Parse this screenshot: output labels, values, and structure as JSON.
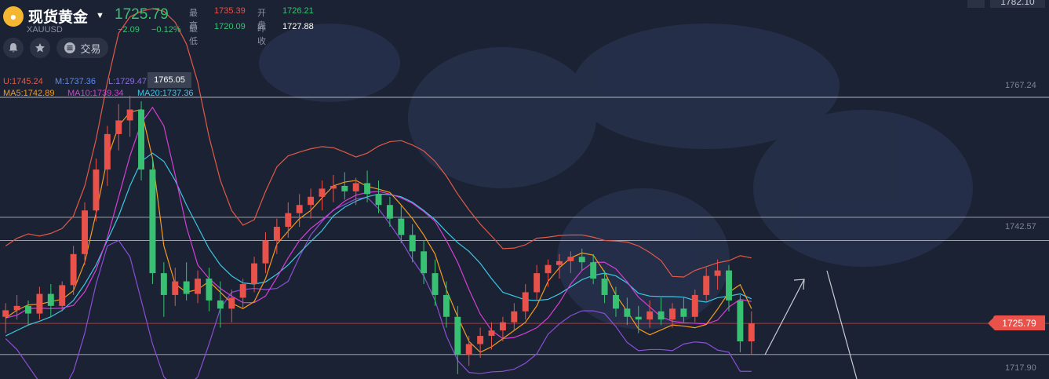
{
  "header": {
    "name": "现货黄金",
    "ticker": "XAUUSD",
    "price": "1725.79",
    "change": "−2.09",
    "change_pct": "−0.12%",
    "quote": [
      {
        "label": "最高",
        "value": "1735.39",
        "color": "#e8524a"
      },
      {
        "label": "开盘",
        "value": "1726.21",
        "color": "#38c172"
      },
      {
        "label": "最低",
        "value": "1720.09",
        "color": "#38c172"
      },
      {
        "label": "昨收",
        "value": "1727.88",
        "color": "#ffffff"
      }
    ]
  },
  "toolbar": {
    "trade_label": "交易"
  },
  "indicators": {
    "boll_upper": "U:1745.24",
    "boll_mid": "M:1737.36",
    "boll_lower": "L:1729.47",
    "ma5": "MA5:1742.89",
    "ma10": "MA10:1739.34",
    "ma20": "MA20:1737.36"
  },
  "tooltip": "1765.05",
  "axis": {
    "top_right": "1782.10",
    "current": "1725.79"
  },
  "colors": {
    "background": "#1b2233",
    "up": "#e8524a",
    "down": "#38c172",
    "boll": "#e05a48",
    "boll_lower": "#8a4fd6",
    "ma5": "#f59b1d",
    "ma10": "#d63fd6",
    "ma20": "#3cc7e6"
  },
  "chart_data": {
    "type": "candlestick",
    "series_names": [
      "U",
      "M",
      "L",
      "MA5",
      "MA10",
      "MA20"
    ],
    "y_ticks": [
      1767.24,
      1742.57,
      1717.9
    ],
    "y_tick_labels": [
      "1767.24",
      "1742.57",
      "1717.90"
    ],
    "ylim": [
      1715.0,
      1782.1
    ],
    "last_price": 1725.79,
    "horizontal_levels": [
      1767.24,
      1745.24,
      1741.0,
      1725.79,
      1720.09
    ],
    "upper_band": [
      1740.0,
      1741.4,
      1742.2,
      1741.8,
      1742.3,
      1743.2,
      1745.5,
      1751.0,
      1759.5,
      1770.0,
      1779.0,
      1782.0,
      1783.0,
      1783.5,
      1783.0,
      1781.0,
      1777.0,
      1770.0,
      1760.0,
      1752.0,
      1746.5,
      1743.8,
      1744.8,
      1750.0,
      1754.5,
      1756.5,
      1757.2,
      1757.8,
      1758.2,
      1758.0,
      1757.2,
      1756.3,
      1757.0,
      1758.3,
      1759.1,
      1759.3,
      1758.5,
      1757.4,
      1755.5,
      1752.8,
      1749.5,
      1746.6,
      1744.0,
      1741.8,
      1739.5,
      1739.6,
      1740.2,
      1741.4,
      1741.6,
      1741.9,
      1742.0,
      1742.0,
      1741.6,
      1741.0,
      1740.9,
      1740.7,
      1740.0,
      1738.8,
      1737.3,
      1734.4,
      1734.3,
      1735.5,
      1736.2,
      1736.9,
      1737.3,
      1738.2,
      1737.8
    ],
    "lower_band": [
      1723.0,
      1721.0,
      1718.0,
      1715.0,
      1713.0,
      1713.2,
      1717.0,
      1724.0,
      1733.0,
      1740.0,
      1741.0,
      1738.0,
      1730.0,
      1722.0,
      1716.0,
      1714.0,
      1714.0,
      1716.0,
      1722.0,
      1728.5,
      1731.5,
      1732.0,
      1732.2,
      1732.0,
      1732.2,
      1733.5,
      1738.0,
      1742.0,
      1744.5,
      1746.6,
      1747.6,
      1748.6,
      1748.9,
      1746.8,
      1744.0,
      1741.0,
      1737.5,
      1734.5,
      1730.0,
      1723.5,
      1719.0,
      1716.8,
      1716.6,
      1716.9,
      1717.0,
      1717.4,
      1718.5,
      1720.2,
      1723.8,
      1725.7,
      1727.2,
      1728.1,
      1728.1,
      1727.6,
      1725.2,
      1722.3,
      1720.8,
      1721.0,
      1721.0,
      1720.8,
      1722.0,
      1722.4,
      1722.2,
      1720.9,
      1720.5,
      1717.0,
      1717.0
    ],
    "ma5": [
      1726.8,
      1728.2,
      1729.2,
      1729.3,
      1729.8,
      1730.2,
      1731.8,
      1737.0,
      1746.0,
      1756.0,
      1762.0,
      1764.5,
      1765.0,
      1756.0,
      1740.0,
      1733.0,
      1731.5,
      1732.0,
      1733.5,
      1731.5,
      1729.5,
      1728.5,
      1729.8,
      1734.0,
      1740.3,
      1742.7,
      1745.0,
      1746.5,
      1748.8,
      1751.0,
      1751.7,
      1752.0,
      1750.9,
      1750.4,
      1749.8,
      1747.5,
      1745.0,
      1742.0,
      1738.5,
      1732.0,
      1727.0,
      1722.5,
      1720.5,
      1721.5,
      1723.0,
      1724.5,
      1726.0,
      1729.0,
      1733.5,
      1736.0,
      1737.8,
      1738.7,
      1738.3,
      1735.2,
      1731.0,
      1728.0,
      1724.8,
      1723.7,
      1724.6,
      1725.5,
      1725.3,
      1725.0,
      1725.6,
      1728.4,
      1731.5,
      1732.9,
      1728.5
    ],
    "ma10": [
      1726.8,
      1727.3,
      1728.5,
      1728.6,
      1728.5,
      1728.6,
      1729.1,
      1731.6,
      1735.6,
      1741.5,
      1749.0,
      1756.5,
      1762.5,
      1765.4,
      1762.0,
      1753.0,
      1743.5,
      1736.5,
      1734.0,
      1732.2,
      1730.8,
      1729.6,
      1729.6,
      1730.8,
      1734.2,
      1737.8,
      1741.0,
      1743.2,
      1744.8,
      1746.5,
      1748.2,
      1749.3,
      1749.8,
      1750.0,
      1749.5,
      1748.8,
      1747.8,
      1746.3,
      1744.5,
      1741.0,
      1737.0,
      1732.0,
      1727.5,
      1724.5,
      1723.0,
      1723.2,
      1724.0,
      1725.0,
      1726.8,
      1729.6,
      1733.0,
      1735.5,
      1737.0,
      1737.0,
      1735.8,
      1733.4,
      1730.6,
      1728.8,
      1727.0,
      1726.2,
      1725.9,
      1725.8,
      1725.7,
      1726.4,
      1728.8,
      1730.2,
      1729.8
    ],
    "ma20": [
      1723.5,
      1724.5,
      1725.5,
      1726.2,
      1727.0,
      1728.2,
      1730.0,
      1733.0,
      1736.5,
      1741.0,
      1745.5,
      1751.0,
      1755.5,
      1757.0,
      1755.5,
      1752.0,
      1747.5,
      1743.5,
      1739.5,
      1736.5,
      1734.5,
      1733.2,
      1733.0,
      1733.4,
      1734.8,
      1736.5,
      1738.7,
      1740.8,
      1742.8,
      1745.5,
      1747.1,
      1748.2,
      1749.0,
      1749.5,
      1749.4,
      1749.0,
      1748.0,
      1746.5,
      1744.8,
      1742.6,
      1740.6,
      1739.0,
      1736.8,
      1734.0,
      1731.5,
      1730.8,
      1730.1,
      1730.0,
      1730.2,
      1731.2,
      1732.5,
      1733.8,
      1734.6,
      1735.0,
      1734.5,
      1733.2,
      1731.3,
      1730.8,
      1730.7,
      1730.7,
      1730.6,
      1730.0,
      1729.7,
      1730.5,
      1730.8,
      1731.2,
      1730.3
    ],
    "candles": [
      {
        "o": 1727.0,
        "h": 1729.5,
        "l": 1724.0,
        "c": 1728.2
      },
      {
        "o": 1728.2,
        "h": 1731.0,
        "l": 1726.5,
        "c": 1729.0
      },
      {
        "o": 1729.0,
        "h": 1730.0,
        "l": 1725.5,
        "c": 1727.6
      },
      {
        "o": 1727.6,
        "h": 1732.5,
        "l": 1726.5,
        "c": 1731.2
      },
      {
        "o": 1731.2,
        "h": 1733.0,
        "l": 1727.0,
        "c": 1729.0
      },
      {
        "o": 1729.0,
        "h": 1733.5,
        "l": 1728.0,
        "c": 1732.8
      },
      {
        "o": 1732.8,
        "h": 1740.0,
        "l": 1731.0,
        "c": 1738.5
      },
      {
        "o": 1738.5,
        "h": 1748.0,
        "l": 1736.5,
        "c": 1746.5
      },
      {
        "o": 1746.5,
        "h": 1756.0,
        "l": 1744.5,
        "c": 1754.0
      },
      {
        "o": 1754.0,
        "h": 1762.0,
        "l": 1751.0,
        "c": 1760.5
      },
      {
        "o": 1760.5,
        "h": 1766.0,
        "l": 1757.5,
        "c": 1763.0
      },
      {
        "o": 1763.0,
        "h": 1767.5,
        "l": 1760.0,
        "c": 1765.0
      },
      {
        "o": 1765.0,
        "h": 1766.5,
        "l": 1752.0,
        "c": 1754.0
      },
      {
        "o": 1754.0,
        "h": 1756.0,
        "l": 1733.0,
        "c": 1735.0
      },
      {
        "o": 1735.0,
        "h": 1737.0,
        "l": 1727.0,
        "c": 1731.0
      },
      {
        "o": 1731.0,
        "h": 1736.0,
        "l": 1729.0,
        "c": 1733.5
      },
      {
        "o": 1733.5,
        "h": 1737.0,
        "l": 1730.0,
        "c": 1731.2
      },
      {
        "o": 1731.2,
        "h": 1735.5,
        "l": 1729.5,
        "c": 1734.0
      },
      {
        "o": 1734.0,
        "h": 1736.0,
        "l": 1728.0,
        "c": 1730.0
      },
      {
        "o": 1730.0,
        "h": 1733.5,
        "l": 1725.0,
        "c": 1728.5
      },
      {
        "o": 1728.5,
        "h": 1732.0,
        "l": 1726.0,
        "c": 1730.5
      },
      {
        "o": 1730.5,
        "h": 1734.0,
        "l": 1728.5,
        "c": 1733.0
      },
      {
        "o": 1733.0,
        "h": 1738.0,
        "l": 1731.5,
        "c": 1736.8
      },
      {
        "o": 1736.8,
        "h": 1742.5,
        "l": 1735.0,
        "c": 1741.0
      },
      {
        "o": 1741.0,
        "h": 1745.0,
        "l": 1738.5,
        "c": 1743.5
      },
      {
        "o": 1743.5,
        "h": 1748.0,
        "l": 1741.5,
        "c": 1746.0
      },
      {
        "o": 1746.0,
        "h": 1749.5,
        "l": 1743.5,
        "c": 1747.5
      },
      {
        "o": 1747.5,
        "h": 1750.5,
        "l": 1745.0,
        "c": 1749.0
      },
      {
        "o": 1749.0,
        "h": 1752.0,
        "l": 1746.5,
        "c": 1750.5
      },
      {
        "o": 1750.5,
        "h": 1753.0,
        "l": 1748.0,
        "c": 1751.0
      },
      {
        "o": 1751.0,
        "h": 1753.5,
        "l": 1748.5,
        "c": 1750.0
      },
      {
        "o": 1750.0,
        "h": 1752.5,
        "l": 1747.5,
        "c": 1751.5
      },
      {
        "o": 1751.5,
        "h": 1753.8,
        "l": 1748.0,
        "c": 1749.5
      },
      {
        "o": 1749.5,
        "h": 1752.0,
        "l": 1746.0,
        "c": 1747.5
      },
      {
        "o": 1747.5,
        "h": 1749.0,
        "l": 1743.5,
        "c": 1745.0
      },
      {
        "o": 1745.0,
        "h": 1747.5,
        "l": 1740.5,
        "c": 1742.0
      },
      {
        "o": 1742.0,
        "h": 1744.0,
        "l": 1737.0,
        "c": 1739.0
      },
      {
        "o": 1739.0,
        "h": 1741.0,
        "l": 1733.0,
        "c": 1735.0
      },
      {
        "o": 1735.0,
        "h": 1737.5,
        "l": 1729.0,
        "c": 1731.0
      },
      {
        "o": 1731.0,
        "h": 1733.5,
        "l": 1725.0,
        "c": 1727.0
      },
      {
        "o": 1727.0,
        "h": 1729.0,
        "l": 1716.5,
        "c": 1720.0
      },
      {
        "o": 1720.0,
        "h": 1723.5,
        "l": 1718.0,
        "c": 1722.0
      },
      {
        "o": 1722.0,
        "h": 1725.0,
        "l": 1719.5,
        "c": 1723.5
      },
      {
        "o": 1723.5,
        "h": 1726.0,
        "l": 1721.0,
        "c": 1724.5
      },
      {
        "o": 1724.5,
        "h": 1727.0,
        "l": 1722.5,
        "c": 1726.0
      },
      {
        "o": 1726.0,
        "h": 1729.5,
        "l": 1724.5,
        "c": 1728.0
      },
      {
        "o": 1728.0,
        "h": 1733.0,
        "l": 1726.5,
        "c": 1731.5
      },
      {
        "o": 1731.5,
        "h": 1736.5,
        "l": 1730.0,
        "c": 1735.0
      },
      {
        "o": 1735.0,
        "h": 1737.5,
        "l": 1732.5,
        "c": 1736.5
      },
      {
        "o": 1736.5,
        "h": 1738.5,
        "l": 1734.0,
        "c": 1737.2
      },
      {
        "o": 1737.2,
        "h": 1739.0,
        "l": 1735.0,
        "c": 1738.0
      },
      {
        "o": 1738.0,
        "h": 1739.5,
        "l": 1735.5,
        "c": 1737.0
      },
      {
        "o": 1737.0,
        "h": 1738.5,
        "l": 1733.0,
        "c": 1734.0
      },
      {
        "o": 1734.0,
        "h": 1735.5,
        "l": 1729.5,
        "c": 1731.0
      },
      {
        "o": 1731.0,
        "h": 1732.5,
        "l": 1727.0,
        "c": 1728.5
      },
      {
        "o": 1728.5,
        "h": 1730.5,
        "l": 1725.5,
        "c": 1727.0
      },
      {
        "o": 1727.0,
        "h": 1729.0,
        "l": 1724.0,
        "c": 1726.5
      },
      {
        "o": 1726.5,
        "h": 1730.0,
        "l": 1725.0,
        "c": 1728.0
      },
      {
        "o": 1728.0,
        "h": 1730.5,
        "l": 1725.5,
        "c": 1726.5
      },
      {
        "o": 1726.5,
        "h": 1729.5,
        "l": 1725.0,
        "c": 1728.5
      },
      {
        "o": 1728.5,
        "h": 1730.5,
        "l": 1726.0,
        "c": 1727.0
      },
      {
        "o": 1727.0,
        "h": 1732.0,
        "l": 1726.0,
        "c": 1731.0
      },
      {
        "o": 1731.0,
        "h": 1736.0,
        "l": 1730.0,
        "c": 1734.5
      },
      {
        "o": 1734.5,
        "h": 1737.5,
        "l": 1732.0,
        "c": 1735.5
      },
      {
        "o": 1735.5,
        "h": 1736.5,
        "l": 1728.0,
        "c": 1730.0
      },
      {
        "o": 1730.0,
        "h": 1731.0,
        "l": 1720.5,
        "c": 1722.5
      },
      {
        "o": 1722.5,
        "h": 1728.0,
        "l": 1720.0,
        "c": 1725.8
      }
    ]
  }
}
